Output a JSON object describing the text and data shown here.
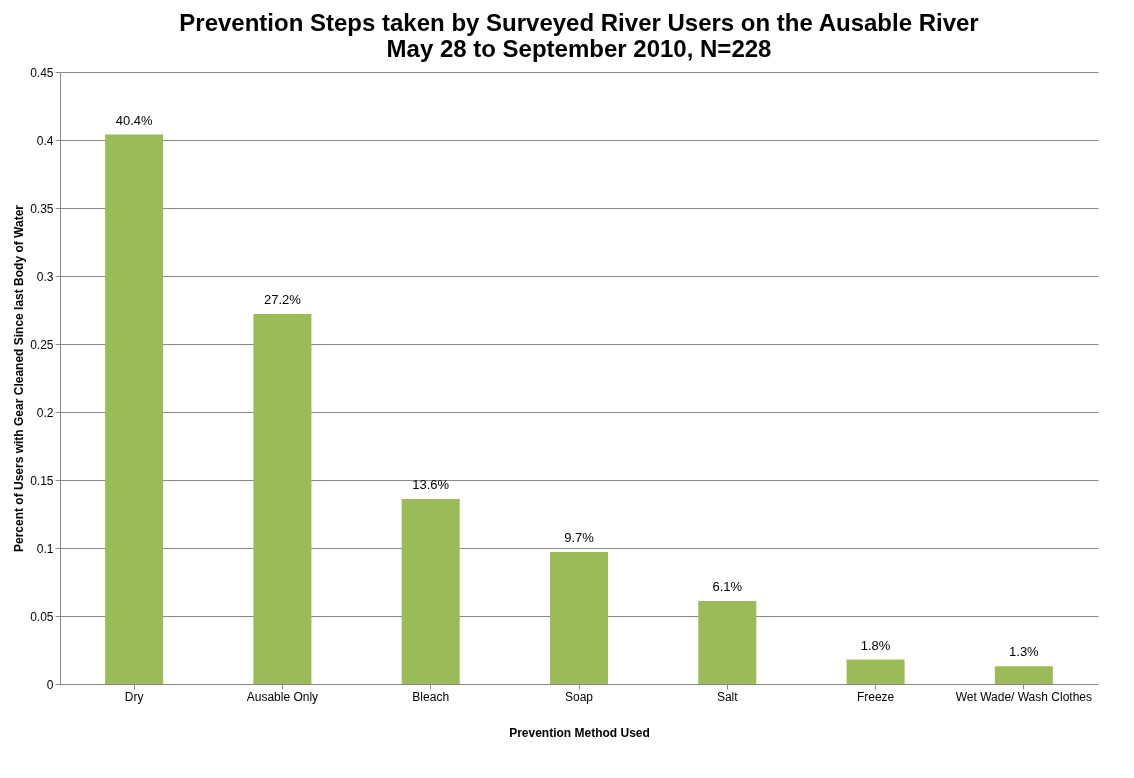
{
  "chart_data": {
    "type": "bar",
    "title": "Prevention Steps taken by Surveyed River Users on the Ausable River\nMay 28 to September 2010, N=228",
    "xlabel": "Prevention Method Used",
    "ylabel": "Percent of Users with Gear Cleaned Since last Body of Water",
    "categories": [
      "Dry",
      "Ausable Only",
      "Bleach",
      "Soap",
      "Salt",
      "Freeze",
      "Wet Wade/ Wash Clothes"
    ],
    "values": [
      0.404,
      0.272,
      0.136,
      0.097,
      0.061,
      0.018,
      0.013
    ],
    "value_labels": [
      "40.4%",
      "27.2%",
      "13.6%",
      "9.7%",
      "6.1%",
      "1.8%",
      "1.3%"
    ],
    "color": "#9bbb59",
    "ylim": [
      0,
      0.45
    ],
    "yticks": [
      0,
      0.05,
      0.1,
      0.15,
      0.2,
      0.25,
      0.3,
      0.35,
      0.4,
      0.45
    ],
    "grid": "y"
  }
}
